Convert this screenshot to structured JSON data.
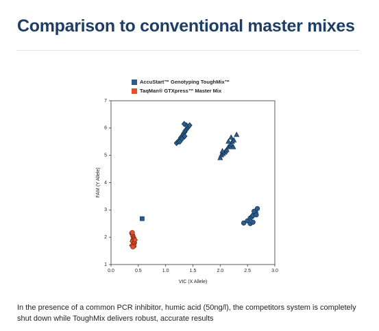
{
  "header": {
    "title": "Comparison to conventional master mixes"
  },
  "chart_data": {
    "type": "scatter",
    "xlabel": "VIC (X Allele)",
    "ylabel": "FAM (Y Allele)",
    "xlim": [
      0,
      3
    ],
    "ylim": [
      1,
      7
    ],
    "xticks": [
      {
        "value": 0,
        "label": "0.0"
      },
      {
        "value": 0.5,
        "label": "0.5"
      },
      {
        "value": 1,
        "label": "1.0"
      },
      {
        "value": 1.5,
        "label": "1.5"
      },
      {
        "value": 2,
        "label": "2.0"
      },
      {
        "value": 2.5,
        "label": "2.5"
      },
      {
        "value": 3,
        "label": "3.0"
      }
    ],
    "yticks": [
      1,
      2,
      3,
      4,
      5,
      6,
      7
    ],
    "legend": "top-left",
    "series": [
      {
        "name": "AccuStart™ Genotyping ToughMix™",
        "color": "#2b5d8c",
        "x": [
          1.2,
          1.23,
          1.25,
          1.27,
          1.28,
          1.3,
          1.32,
          1.33,
          1.35,
          1.36,
          1.38,
          1.4,
          1.42,
          1.3,
          1.35,
          1.38,
          1.44,
          1.34,
          1.26,
          2.0,
          2.02,
          2.05,
          2.08,
          2.1,
          2.12,
          2.15,
          2.18,
          2.2,
          2.22,
          2.25,
          2.2,
          2.3,
          2.15,
          2.04,
          2.24,
          2.43,
          2.5,
          2.55,
          2.58,
          2.6,
          2.65,
          2.62,
          2.68,
          2.55,
          2.6,
          2.66,
          0.57
        ],
        "values": [
          5.45,
          5.5,
          5.55,
          5.6,
          5.65,
          5.7,
          5.75,
          5.8,
          5.85,
          5.9,
          5.95,
          6.0,
          6.05,
          5.6,
          5.7,
          6.1,
          6.1,
          6.15,
          5.5,
          4.9,
          5.0,
          5.05,
          5.1,
          5.15,
          5.2,
          5.3,
          5.35,
          5.4,
          5.5,
          5.55,
          5.65,
          5.75,
          5.5,
          5.15,
          5.3,
          2.52,
          2.6,
          2.7,
          2.75,
          2.8,
          2.9,
          2.95,
          3.05,
          2.5,
          2.55,
          2.82,
          2.68
        ],
        "markers": [
          "diamond",
          "diamond",
          "diamond",
          "diamond",
          "diamond",
          "diamond",
          "diamond",
          "diamond",
          "diamond",
          "diamond",
          "diamond",
          "diamond",
          "diamond",
          "diamond",
          "diamond",
          "diamond",
          "diamond",
          "diamond",
          "diamond",
          "triangle",
          "triangle",
          "triangle",
          "triangle",
          "triangle",
          "triangle",
          "triangle",
          "triangle",
          "triangle",
          "triangle",
          "triangle",
          "triangle",
          "triangle",
          "triangle",
          "triangle",
          "triangle",
          "circle",
          "circle",
          "circle",
          "circle",
          "circle",
          "circle",
          "circle",
          "circle",
          "circle",
          "circle",
          "circle",
          "square"
        ]
      },
      {
        "name": "TaqMan® GTXpress™ Master Mix",
        "color": "#e2512f",
        "x": [
          0.38,
          0.39,
          0.4,
          0.41,
          0.42,
          0.4,
          0.39,
          0.43,
          0.41,
          0.38,
          0.42,
          0.4,
          0.44,
          0.39
        ],
        "values": [
          2.15,
          2.1,
          2.05,
          2.0,
          1.95,
          1.9,
          1.85,
          1.8,
          1.75,
          1.7,
          1.68,
          1.65,
          1.9,
          2.17
        ],
        "markers": [
          "circle",
          "diamond",
          "circle",
          "diamond",
          "circle",
          "circle",
          "diamond",
          "circle",
          "circle",
          "diamond",
          "circle",
          "circle",
          "diamond",
          "circle"
        ]
      }
    ]
  },
  "caption": "In the presence of a common PCR inhibitor, humic acid (50ng/l), the competitors system is completely shut down while ToughMix delivers robust, accurate results"
}
